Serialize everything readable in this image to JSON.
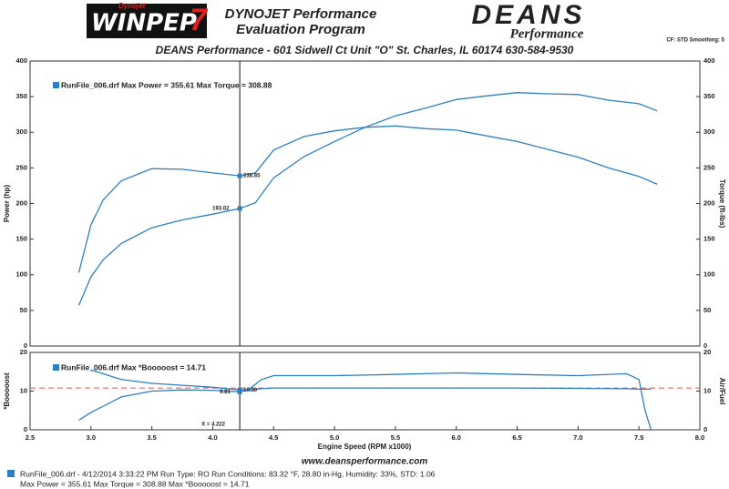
{
  "header": {
    "logo_badge": "Dynojet",
    "logo_left": "WINPEP",
    "logo_mark": "7",
    "program_title": [
      "DYNOJET Performance",
      "Evaluation Program"
    ],
    "logo_right": "DEANS",
    "logo_right_sub": "Performance",
    "settings": "CF: STD Smoothing: 5",
    "shop_line": "DEANS Performance - 601 Sidwell Ct Unit \"O\"  St. Charles, IL 60174  630-584-9530"
  },
  "website": "www.deansperformance.com",
  "footer": [
    "RunFile_006.drf - 4/12/2014 3:33:22 PM  Run Type: RO  Run Conditions: 83.32 °F, 28.80 in-Hg,  Humidity:  33%, STD: 1.06",
    "Max Power = 355.61  Max Torque = 308.88  Max *Booooost = 14.71"
  ],
  "chart_data": [
    {
      "type": "line",
      "legend_text": "RunFile_006.drf Max Power = 355.61   Max Torque = 308.88",
      "y_label": "Power (hp)",
      "y2_label": "Torque (ft-lbs)",
      "xlim": [
        2.5,
        8.0
      ],
      "ylim": [
        0,
        400
      ],
      "yticks": [
        0,
        50,
        100,
        150,
        200,
        250,
        300,
        350,
        400
      ],
      "y2lim": [
        0,
        400
      ],
      "y2ticks": [
        0,
        50,
        100,
        150,
        200,
        250,
        300,
        350,
        400
      ],
      "cursor_x": 4.222,
      "cursor_points": [
        {
          "value": 238.85,
          "axis": "y2"
        },
        {
          "value": 193.02
        }
      ],
      "x": [
        2.9,
        3.0,
        3.1,
        3.25,
        3.5,
        3.75,
        4.0,
        4.222,
        4.35,
        4.5,
        4.75,
        5.0,
        5.25,
        5.5,
        5.75,
        6.0,
        6.25,
        6.5,
        6.75,
        7.0,
        7.25,
        7.5,
        7.65
      ],
      "series": [
        {
          "name": "Power",
          "color": "#2f7fc0",
          "values": [
            57,
            97,
            121,
            144,
            166,
            177,
            185,
            193.02,
            201,
            236,
            266,
            287,
            307,
            323,
            334,
            346,
            351,
            355.61,
            354,
            353,
            345,
            340,
            330
          ]
        },
        {
          "name": "Torque",
          "color": "#2f7fc0",
          "axis": "y2",
          "values": [
            103,
            170,
            205,
            232,
            249,
            248,
            243,
            238.85,
            243,
            275,
            294,
            302,
            307,
            308.88,
            305,
            303,
            295,
            287,
            276,
            265,
            250,
            238,
            227
          ]
        }
      ]
    },
    {
      "type": "line",
      "legend_text": "RunFile_006.drf Max *Booooost = 14.71",
      "y_label": "*Booooost",
      "y2_label": "Air/Fuel",
      "x_label": "Engine Speed (RPM x1000)",
      "cursor_label": "X = 4.222",
      "xlim": [
        2.5,
        8.0
      ],
      "xticks": [
        2.5,
        {
          "value": 3,
          "label": "3.0"
        },
        3.5,
        {
          "value": 4,
          "label": "4.0"
        },
        4.5,
        {
          "value": 5,
          "label": "5.0"
        },
        5.5,
        {
          "value": 6,
          "label": "6.0"
        },
        6.5,
        {
          "value": 7,
          "label": "7.0"
        },
        7.5,
        {
          "value": 8,
          "label": "8.0"
        }
      ],
      "ylim": [
        0,
        20
      ],
      "yticks": [
        0,
        10,
        20
      ],
      "y2lim": [
        0,
        20
      ],
      "y2ticks": [
        0,
        10,
        20
      ],
      "reference_line": {
        "value": 10.8,
        "color": "#e05858"
      },
      "cursor_x": 4.222,
      "cursor_points": [
        {
          "value": 9.81
        },
        {
          "value": 10.3,
          "label": "10.30",
          "axis": "y2"
        }
      ],
      "x": [
        2.9,
        3.0,
        3.25,
        3.5,
        3.75,
        4.0,
        4.222,
        4.3,
        4.4,
        4.5,
        5.0,
        5.5,
        6.0,
        6.5,
        7.0,
        7.4,
        7.5,
        7.55,
        7.6
      ],
      "series": [
        {
          "name": "Booooost",
          "color": "#2f7fc0",
          "values": [
            2.5,
            4.5,
            8.5,
            10,
            10.3,
            10.2,
            9.81,
            10.5,
            13,
            14,
            14,
            14.3,
            14.71,
            14.3,
            14,
            14.5,
            13,
            5,
            0
          ]
        },
        {
          "name": "Air/Fuel",
          "color": "#2f7fc0",
          "axis": "y2",
          "values": [
            null,
            15.5,
            13,
            12,
            11.5,
            11,
            10.3,
            10.3,
            10.6,
            10.8,
            10.8,
            10.8,
            10.8,
            10.8,
            10.7,
            10.6,
            10.5,
            10.5,
            10.5
          ]
        }
      ]
    }
  ]
}
